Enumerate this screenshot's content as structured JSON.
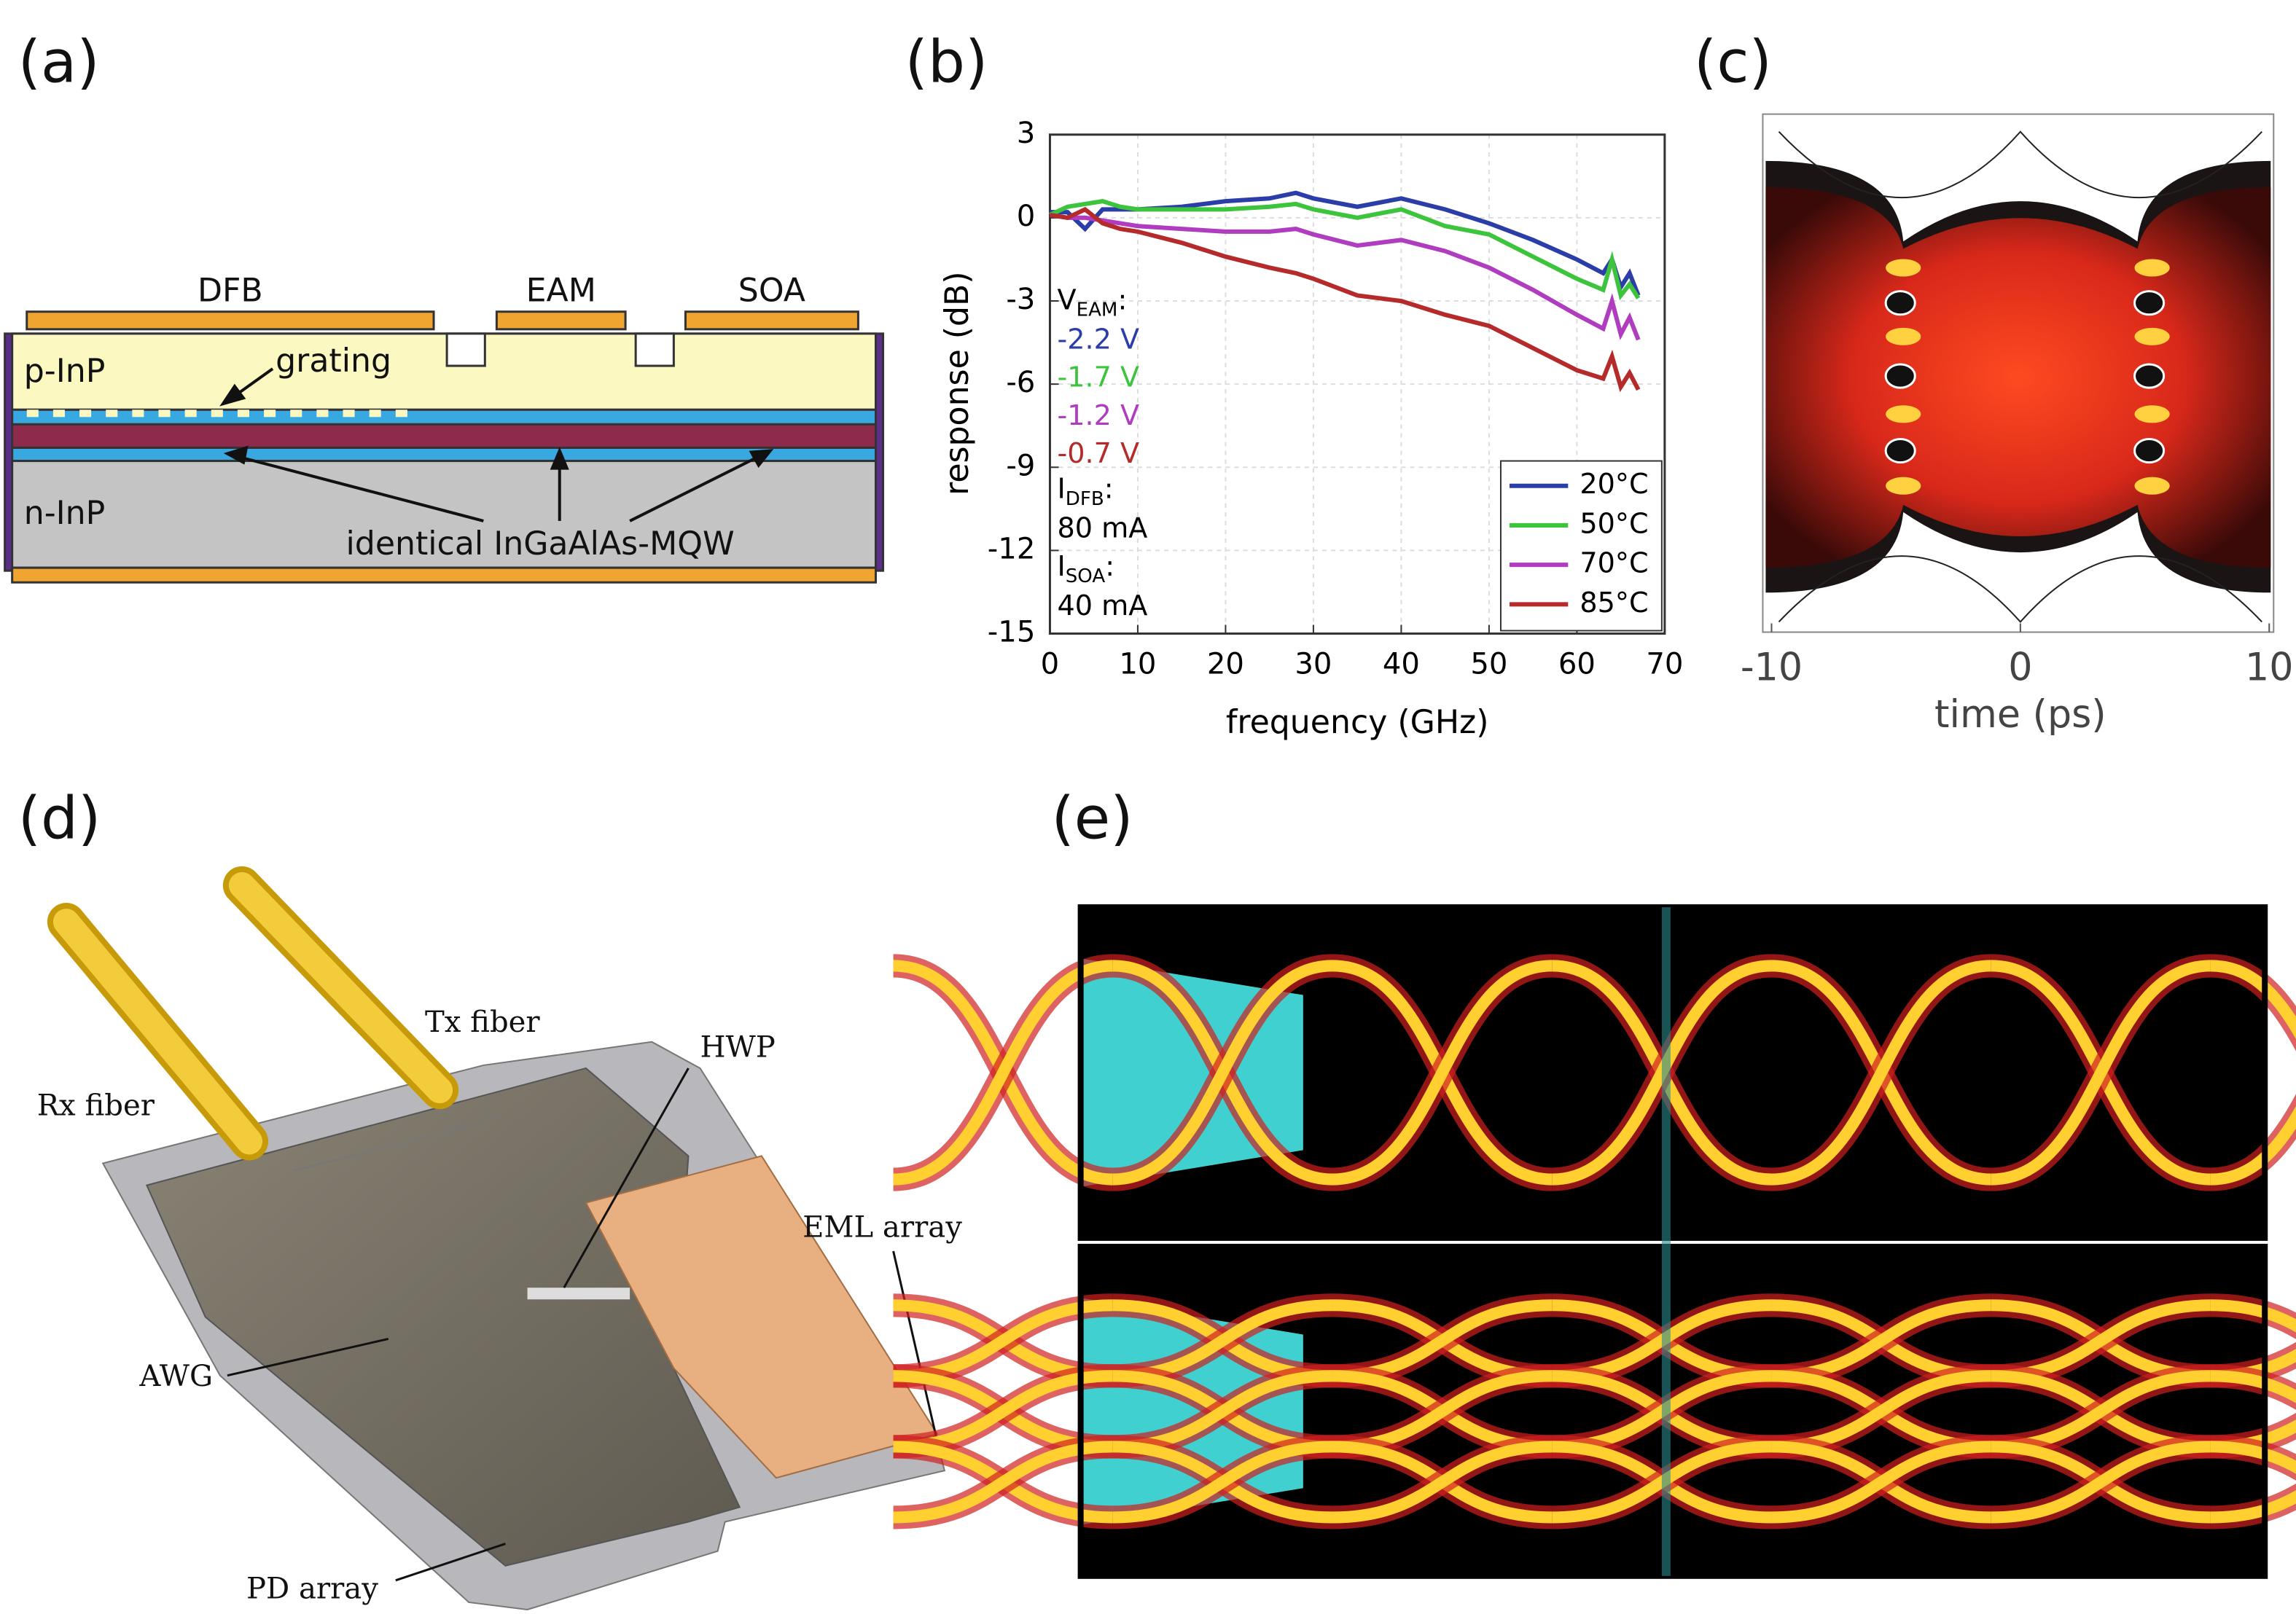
{
  "panel_labels": [
    "(a)",
    "(b)",
    "(c)",
    "(d)",
    "(e)"
  ],
  "diagram_a": {
    "contacts": [
      "DFB",
      "EAM",
      "SOA"
    ],
    "p_layer": "p-InP",
    "grating": "grating",
    "n_layer": "n-InP",
    "mqw": "identical InGaAlAs-MQW"
  },
  "chart_data": [
    {
      "type": "line",
      "xlabel": "frequency (GHz)",
      "ylabel": "response (dB)",
      "x": [
        0,
        2,
        4,
        6,
        8,
        10,
        15,
        20,
        25,
        28,
        30,
        35,
        40,
        45,
        50,
        55,
        60,
        63,
        64,
        65,
        66,
        67
      ],
      "series": [
        {
          "name": "20°C",
          "color": "#2b3ea8",
          "values": [
            0.2,
            0.2,
            -0.4,
            0.3,
            0.3,
            0.3,
            0.4,
            0.6,
            0.7,
            0.9,
            0.7,
            0.4,
            0.7,
            0.3,
            -0.2,
            -0.8,
            -1.5,
            -2.0,
            -1.5,
            -2.5,
            -2.0,
            -2.8
          ]
        },
        {
          "name": "50°C",
          "color": "#3cc43c",
          "values": [
            0.1,
            0.4,
            0.5,
            0.6,
            0.4,
            0.3,
            0.3,
            0.3,
            0.4,
            0.5,
            0.3,
            0.0,
            0.3,
            -0.3,
            -0.6,
            -1.4,
            -2.2,
            -2.6,
            -1.5,
            -2.8,
            -2.4,
            -2.9
          ]
        },
        {
          "name": "70°C",
          "color": "#b03cc0",
          "values": [
            0.1,
            0.0,
            0.0,
            -0.1,
            -0.2,
            -0.3,
            -0.4,
            -0.5,
            -0.5,
            -0.4,
            -0.6,
            -1.0,
            -0.8,
            -1.2,
            -1.8,
            -2.6,
            -3.5,
            -4.0,
            -3.0,
            -4.2,
            -3.6,
            -4.4
          ]
        },
        {
          "name": "85°C",
          "color": "#b52a2a",
          "values": [
            0.1,
            0.0,
            0.3,
            -0.2,
            -0.4,
            -0.5,
            -0.9,
            -1.4,
            -1.8,
            -2.0,
            -2.2,
            -2.8,
            -3.0,
            -3.5,
            -3.9,
            -4.7,
            -5.5,
            -5.8,
            -5.0,
            -6.1,
            -5.6,
            -6.2
          ]
        }
      ],
      "xlim": [
        0,
        70
      ],
      "ylim": [
        -15,
        3
      ],
      "xticks": [
        0,
        10,
        20,
        30,
        40,
        50,
        60,
        70
      ],
      "yticks": [
        3,
        0,
        -3,
        -6,
        -9,
        -12,
        -15
      ],
      "grid": true,
      "legend": "lower right",
      "annotations": {
        "v_eam": [
          "V",
          "EAM",
          ":"
        ],
        "voltages": [
          "-2.2 V",
          "-1.7 V",
          "-1.2 V",
          "-0.7 V"
        ],
        "i_dfb": [
          "I",
          "DFB",
          ":"
        ],
        "i_dfb_value": "80 mA",
        "i_soa": [
          "I",
          "SOA",
          ":"
        ],
        "i_soa_value": "40 mA"
      }
    },
    {
      "type": "eye",
      "xlabel": "time (ps)",
      "xlim": [
        -10,
        10
      ],
      "xticks": [
        -10,
        0,
        10
      ]
    }
  ],
  "photo_d": {
    "labels": [
      "Tx fiber",
      "Rx fiber",
      "HWP",
      "EML array",
      "AWG",
      "PD array"
    ]
  }
}
